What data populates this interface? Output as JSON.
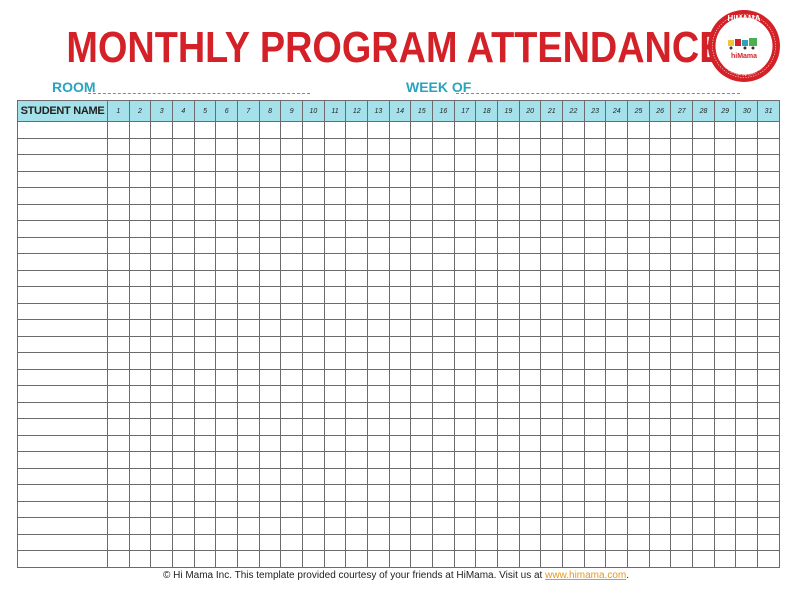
{
  "header": {
    "title": "MONTHLY PROGRAM ATTENDANCE",
    "room_label": "ROOM",
    "week_label": "WEEK OF"
  },
  "logo": {
    "brand_text": "HiMAMA",
    "sub_text": "hiMama",
    "ring_text": "BECAUSE FOR THE EARLY YEARS",
    "brand_color": "#d42027"
  },
  "table": {
    "name_header": "STUDENT NAME",
    "day_headers": [
      "1",
      "2",
      "3",
      "4",
      "5",
      "6",
      "7",
      "8",
      "9",
      "10",
      "11",
      "12",
      "13",
      "14",
      "15",
      "16",
      "17",
      "18",
      "19",
      "20",
      "21",
      "22",
      "23",
      "24",
      "25",
      "26",
      "27",
      "28",
      "29",
      "30",
      "31"
    ],
    "row_count": 27,
    "header_color": "#a5e1ea"
  },
  "footer": {
    "text": "© Hi Mama Inc.  This template provided courtesy of your friends at HiMama. Visit us at ",
    "link_text": "www.himama.com",
    "end": "."
  },
  "colors": {
    "title": "#d42027",
    "label": "#2aa3bf",
    "link": "#e8971d"
  }
}
